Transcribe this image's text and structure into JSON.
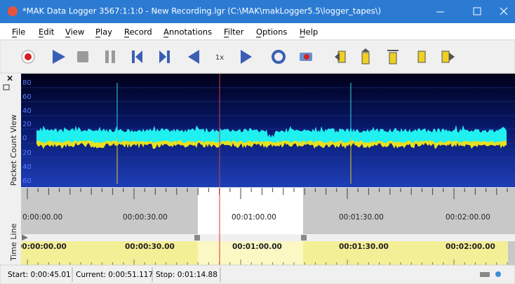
{
  "window": {
    "title": "*MAK Data Logger 3567:1:1:0 - New Recording.lgr (C:\\MAK\\makLogger5.5\\logger_tapes\\)"
  },
  "menu": [
    "File",
    "Edit",
    "View",
    "Play",
    "Record",
    "Annotations",
    "Filter",
    "Options",
    "Help"
  ],
  "toolbar": {
    "speed": "1x"
  },
  "packet_view": {
    "label": "Packet Count View",
    "axis_labels": [
      "80",
      "60",
      "40",
      "20",
      "0",
      "20",
      "40",
      "60"
    ]
  },
  "timeline": {
    "label": "Time Line",
    "ruler_labels": [
      "0:00:00.00",
      "00:00:30.00",
      "00:01:00.00",
      "00:01:30.00",
      "00:02:00.00"
    ],
    "track_labels": [
      "00:00:00.00",
      "00:00:30.00",
      "00:01:00.00",
      "00:01:30.00",
      "00:02:00.00"
    ]
  },
  "status": {
    "start": "Start: 0:00:45.01",
    "current": "Current: 0:00:51.117",
    "stop": "Stop: 0:01:14.88"
  }
}
